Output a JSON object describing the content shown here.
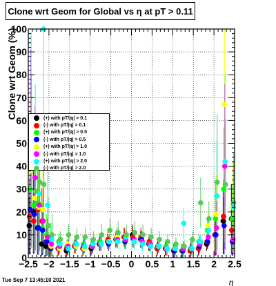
{
  "title": "Clone wrt Geom for Global vs   η at pT > 0.11",
  "footer": "Tue Sep  7 13:45:10 2021",
  "chart_data": {
    "type": "scatter",
    "xlabel": "η",
    "ylabel": "Clone wrt Geom (%)",
    "xlim": [
      -2.5,
      2.5
    ],
    "ylim": [
      0,
      100
    ],
    "x_ticks": [
      "−2.5",
      "−2",
      "−1.5",
      "−1",
      "−0.5",
      "0",
      "0.5",
      "1",
      "1.5",
      "2",
      "2.5"
    ],
    "y_ticks": [
      "0",
      "10",
      "20",
      "30",
      "40",
      "50",
      "60",
      "70",
      "80",
      "90",
      "100"
    ],
    "grid": true,
    "legend_position": "left-middle",
    "series": [
      {
        "name": "(+) with pT/|q| > 0.1",
        "color": "#000000",
        "x": [
          -2.45,
          -2.35,
          -2.25,
          -2.15,
          -2.05,
          -1.95,
          -1.75,
          -1.55,
          -1.35,
          -1.15,
          -0.95,
          -0.75,
          -0.55,
          -0.35,
          -0.15,
          0.05,
          0.25,
          0.45,
          0.65,
          0.85,
          1.05,
          1.25,
          1.45,
          1.65,
          1.85,
          2.05,
          2.25,
          2.45
        ],
        "y": [
          14,
          20,
          13,
          6,
          5,
          4,
          4,
          3,
          5,
          4,
          4,
          6,
          7,
          8,
          9,
          10,
          8,
          6,
          4,
          4,
          3,
          3,
          3,
          4,
          6,
          10,
          16,
          17
        ]
      },
      {
        "name": "(-) with pT/|q| > 0.1",
        "color": "#ff0000",
        "x": [
          -2.45,
          -2.35,
          -2.25,
          -2.15,
          -2.05,
          -1.95,
          -1.75,
          -1.55,
          -1.35,
          -1.15,
          -0.95,
          -0.75,
          -0.55,
          -0.35,
          -0.15,
          0.05,
          0.25,
          0.45,
          0.65,
          0.85,
          1.05,
          1.25,
          1.45,
          1.65,
          1.85,
          2.05,
          2.25,
          2.45
        ],
        "y": [
          18,
          16,
          21,
          16,
          7,
          4,
          4,
          4,
          5,
          4,
          5,
          7,
          8,
          8,
          9,
          9,
          9,
          7,
          4,
          4,
          3,
          3,
          3,
          4,
          7,
          10,
          18,
          12
        ]
      },
      {
        "name": "(+) with pT/|q| > 0.5",
        "color": "#00ff00",
        "x": [
          -2.45,
          -2.35,
          -2.25,
          -2.15,
          -2.05,
          -1.95,
          -1.75,
          -1.55,
          -1.35,
          -1.15,
          -0.95,
          -0.75,
          -0.55,
          -0.35,
          -0.15,
          0.05,
          0.25,
          0.45,
          0.65,
          0.85,
          1.05,
          1.25,
          1.45,
          1.65,
          1.85,
          2.05,
          2.25,
          2.45
        ],
        "y": [
          30,
          23,
          24,
          13,
          10,
          8,
          7,
          5,
          6,
          6,
          5,
          7,
          7,
          8,
          7,
          8,
          8,
          6,
          5,
          5,
          4,
          3,
          4,
          7,
          12,
          17,
          30,
          17
        ]
      },
      {
        "name": "(-) with pT/|q| > 0.5",
        "color": "#0000ff",
        "x": [
          -2.45,
          -2.35,
          -2.25,
          -2.15,
          -2.05,
          -1.95,
          -1.75,
          -1.55,
          -1.35,
          -1.15,
          -0.95,
          -0.75,
          -0.55,
          -0.35,
          -0.15,
          0.05,
          0.25,
          0.45,
          0.65,
          0.85,
          1.05,
          1.25,
          1.45,
          1.65,
          1.85,
          2.05,
          2.25,
          2.45
        ],
        "y": [
          21,
          19,
          13,
          12,
          7,
          4,
          4,
          4,
          5,
          5,
          5,
          6,
          6,
          9,
          7,
          8,
          8,
          6,
          5,
          4,
          3,
          3,
          4,
          5,
          7,
          10,
          14,
          7
        ]
      },
      {
        "name": "(+) with pT/|q| > 1.0",
        "color": "#ffff00",
        "x": [
          -2.45,
          -2.35,
          -2.25,
          -2.15,
          -2.05,
          -1.95,
          -1.75,
          -1.55,
          -1.35,
          -1.15,
          -0.95,
          -0.75,
          -0.55,
          -0.35,
          -0.15,
          0.05,
          0.25,
          0.45,
          0.65,
          0.85,
          1.05,
          1.25,
          1.45,
          1.65,
          1.85,
          2.05,
          2.25,
          2.45
        ],
        "y": [
          38,
          26,
          22,
          21,
          9,
          5,
          4,
          6,
          5,
          4,
          5,
          6,
          7,
          9,
          8,
          7,
          7,
          6,
          5,
          4,
          4,
          4,
          4,
          6,
          14,
          19,
          67,
          22
        ]
      },
      {
        "name": "(-) with pT/|q| > 1.0",
        "color": "#ff00ff",
        "x": [
          -2.45,
          -2.35,
          -2.25,
          -2.15,
          -2.05,
          -1.95,
          -1.75,
          -1.55,
          -1.35,
          -1.15,
          -0.95,
          -0.75,
          -0.55,
          -0.35,
          -0.15,
          0.05,
          0.25,
          0.45,
          0.65,
          0.85,
          1.05,
          1.25,
          1.45,
          1.65,
          1.85,
          2.05,
          2.25,
          2.45
        ],
        "y": [
          48,
          35,
          23,
          16,
          9,
          6,
          5,
          5,
          6,
          5,
          5,
          6,
          7,
          8,
          8,
          8,
          7,
          6,
          5,
          4,
          4,
          4,
          4,
          6,
          9,
          13,
          40,
          8
        ]
      },
      {
        "name": "(+) with pT/|q| > 2.0",
        "color": "#00ffff",
        "x": [
          -2.45,
          -2.35,
          -2.25,
          -2.15,
          -2.05,
          -1.95,
          -1.75,
          -1.55,
          -1.35,
          -1.15,
          -0.95,
          -0.75,
          -0.55,
          -0.35,
          -0.15,
          0.05,
          0.25,
          0.45,
          0.65,
          0.85,
          1.05,
          1.25,
          1.45,
          1.65,
          1.85,
          2.05,
          2.25,
          2.45
        ],
        "y": [
          52,
          40,
          28,
          100,
          23,
          8,
          6,
          4,
          6,
          5,
          6,
          6,
          7,
          7,
          9,
          7,
          6,
          5,
          5,
          4,
          4,
          15,
          4,
          7,
          12,
          27,
          42,
          22
        ]
      },
      {
        "name": "(-) with pT/|q| > 2.0",
        "color": "#55cc55",
        "x": [
          -2.45,
          -2.35,
          -2.25,
          -2.15,
          -2.05,
          -1.95,
          -1.75,
          -1.55,
          -1.35,
          -1.15,
          -0.95,
          -0.75,
          -0.55,
          -0.35,
          -0.15,
          0.05,
          0.25,
          0.45,
          0.65,
          0.85,
          1.05,
          1.25,
          1.45,
          1.65,
          1.85,
          2.05,
          2.25,
          2.45
        ],
        "y": [
          42,
          29,
          33,
          32,
          14,
          10,
          8,
          10,
          9,
          9,
          8,
          10,
          12,
          11,
          10,
          11,
          10,
          9,
          8,
          7,
          6,
          5,
          8,
          24,
          17,
          33,
          32,
          24
        ]
      }
    ]
  }
}
